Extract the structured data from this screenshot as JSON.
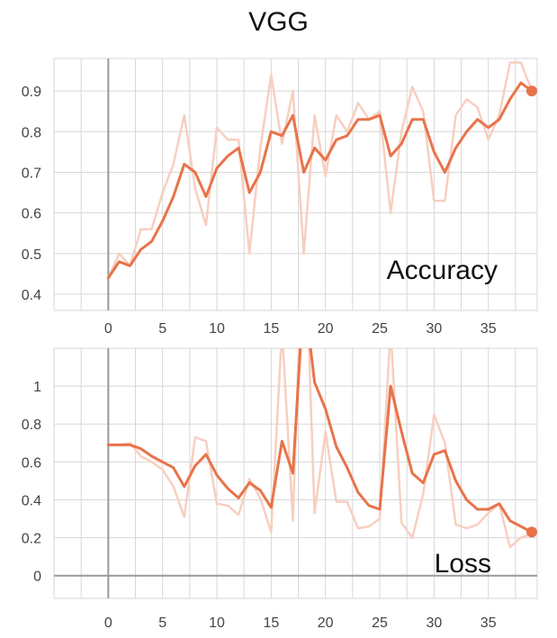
{
  "figure": {
    "title": "VGG"
  },
  "colors": {
    "smoothed": "#e8734a",
    "raw": "#f7cfc0",
    "grid": "#d7d7d7",
    "axis": "#9a9a9a"
  },
  "chart_data": [
    {
      "type": "line",
      "panel_label": "Accuracy",
      "xlim": [
        -5,
        39.5
      ],
      "ylim": [
        0.36,
        0.98
      ],
      "xticks": [
        0,
        5,
        10,
        15,
        20,
        25,
        30,
        35
      ],
      "yticks": [
        0.4,
        0.5,
        0.6,
        0.7,
        0.8,
        0.9
      ],
      "grid": true,
      "series": [
        {
          "role": "raw",
          "x": [
            0,
            1,
            2,
            3,
            4,
            5,
            6,
            7,
            8,
            9,
            10,
            11,
            12,
            13,
            14,
            15,
            16,
            17,
            18,
            19,
            20,
            21,
            22,
            23,
            24,
            25,
            26,
            27,
            28,
            29,
            30,
            31,
            32,
            33,
            34,
            35,
            36,
            37,
            38,
            39
          ],
          "y": [
            0.44,
            0.5,
            0.47,
            0.56,
            0.56,
            0.65,
            0.72,
            0.84,
            0.66,
            0.57,
            0.81,
            0.78,
            0.78,
            0.5,
            0.76,
            0.94,
            0.77,
            0.9,
            0.5,
            0.84,
            0.69,
            0.84,
            0.8,
            0.87,
            0.83,
            0.85,
            0.6,
            0.8,
            0.91,
            0.85,
            0.63,
            0.63,
            0.84,
            0.88,
            0.86,
            0.78,
            0.84,
            0.97,
            0.97,
            0.9
          ]
        },
        {
          "role": "smoothed",
          "x": [
            0,
            1,
            2,
            3,
            4,
            5,
            6,
            7,
            8,
            9,
            10,
            11,
            12,
            13,
            14,
            15,
            16,
            17,
            18,
            19,
            20,
            21,
            22,
            23,
            24,
            25,
            26,
            27,
            28,
            29,
            30,
            31,
            32,
            33,
            34,
            35,
            36,
            37,
            38,
            39
          ],
          "y": [
            0.44,
            0.48,
            0.47,
            0.51,
            0.53,
            0.58,
            0.64,
            0.72,
            0.7,
            0.64,
            0.71,
            0.74,
            0.76,
            0.65,
            0.7,
            0.8,
            0.79,
            0.84,
            0.7,
            0.76,
            0.73,
            0.78,
            0.79,
            0.83,
            0.83,
            0.84,
            0.74,
            0.77,
            0.83,
            0.83,
            0.75,
            0.7,
            0.76,
            0.8,
            0.83,
            0.81,
            0.83,
            0.88,
            0.92,
            0.9
          ]
        }
      ]
    },
    {
      "type": "line",
      "panel_label": "Loss",
      "xlim": [
        -5,
        39.5
      ],
      "ylim": [
        -0.12,
        1.2
      ],
      "xticks": [
        0,
        5,
        10,
        15,
        20,
        25,
        30,
        35
      ],
      "yticks": [
        0,
        0.2,
        0.4,
        0.6,
        0.8,
        1
      ],
      "ytick_labels": [
        "0",
        "0.2",
        "0.4",
        "0.6",
        "0.8",
        "1"
      ],
      "grid": true,
      "series": [
        {
          "role": "raw",
          "x": [
            0,
            1,
            2,
            3,
            4,
            5,
            6,
            7,
            8,
            9,
            10,
            11,
            12,
            13,
            14,
            15,
            16,
            17,
            18,
            19,
            20,
            21,
            22,
            23,
            24,
            25,
            26,
            27,
            28,
            29,
            30,
            31,
            32,
            33,
            34,
            35,
            36,
            37,
            38,
            39
          ],
          "y": [
            0.69,
            0.69,
            0.7,
            0.63,
            0.6,
            0.56,
            0.47,
            0.31,
            0.73,
            0.71,
            0.38,
            0.37,
            0.32,
            0.51,
            0.41,
            0.23,
            1.3,
            0.29,
            2.0,
            0.33,
            0.76,
            0.39,
            0.39,
            0.25,
            0.26,
            0.3,
            1.3,
            0.28,
            0.2,
            0.43,
            0.85,
            0.7,
            0.27,
            0.25,
            0.27,
            0.33,
            0.38,
            0.15,
            0.2,
            0.22
          ]
        },
        {
          "role": "smoothed",
          "x": [
            0,
            1,
            2,
            3,
            4,
            5,
            6,
            7,
            8,
            9,
            10,
            11,
            12,
            13,
            14,
            15,
            16,
            17,
            18,
            19,
            20,
            21,
            22,
            23,
            24,
            25,
            26,
            27,
            28,
            29,
            30,
            31,
            32,
            33,
            34,
            35,
            36,
            37,
            38,
            39
          ],
          "y": [
            0.69,
            0.69,
            0.69,
            0.67,
            0.63,
            0.6,
            0.57,
            0.47,
            0.58,
            0.64,
            0.53,
            0.46,
            0.41,
            0.49,
            0.45,
            0.36,
            0.71,
            0.54,
            1.5,
            1.02,
            0.88,
            0.68,
            0.57,
            0.44,
            0.37,
            0.35,
            1.0,
            0.76,
            0.54,
            0.49,
            0.64,
            0.66,
            0.5,
            0.4,
            0.35,
            0.35,
            0.38,
            0.29,
            0.26,
            0.23
          ]
        }
      ]
    }
  ]
}
